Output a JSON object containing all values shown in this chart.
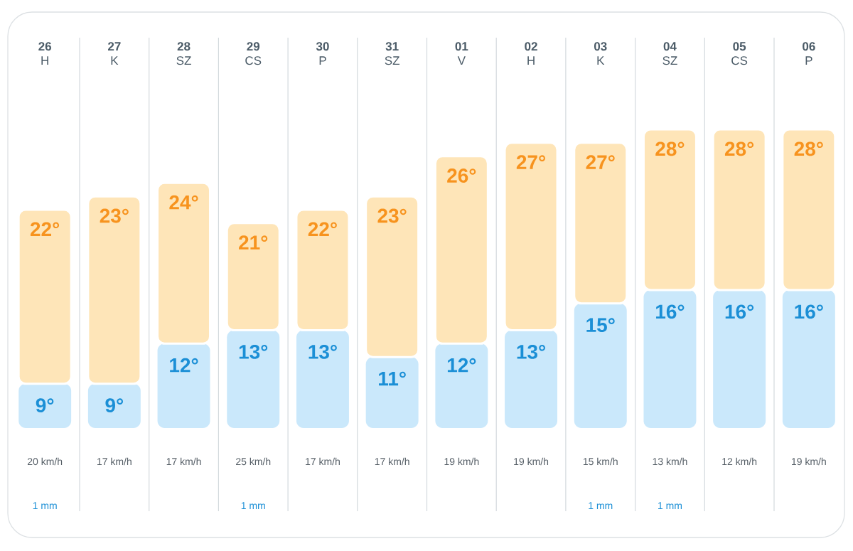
{
  "chart_data": [
    {
      "type": "bar",
      "categories": [
        "**26** H",
        "**27** K",
        "**28** SZ",
        "**29** CS",
        "**30** P",
        "**31** SZ",
        "**01** V",
        "**02** H",
        "**03** K",
        "**04** SZ",
        "**05** CS",
        "**06** P"
      ],
      "stacked": true,
      "series": [
        {
          "color": "#cae8fb",
          "values": [
            9,
            9,
            12,
            13,
            13,
            11,
            12,
            13,
            15,
            16,
            16,
            16
          ],
          "value_labels": [
            "9°",
            "9°",
            "12°",
            "13°",
            "13°",
            "11°",
            "12°",
            "13°",
            "15°",
            "16°",
            "16°",
            "16°"
          ]
        },
        {
          "color": "#fee5b8",
          "values": [
            13,
            14,
            12,
            8,
            9,
            12,
            14,
            14,
            12,
            12,
            12,
            12
          ]
        }
      ],
      "totals": [
        "22°",
        "23°",
        "24°",
        "21°",
        "22°",
        "23°",
        "26°",
        "27°",
        "27°",
        "28°",
        "28°",
        "28°"
      ],
      "ylim": [
        5.7,
        28
      ],
      "tick_labels": "x",
      "grid": "x"
    },
    {
      "type": "other",
      "categories": [
        "20 km/h",
        "17 km/h",
        "17 km/h",
        "25 km/h",
        "17 km/h",
        "17 km/h",
        "19 km/h",
        "19 km/h",
        "15 km/h",
        "13 km/h",
        "12 km/h",
        "19 km/h"
      ]
    },
    {
      "type": "other",
      "categories": [
        "1 mm",
        null,
        null,
        "1 mm",
        null,
        null,
        null,
        null,
        "1 mm",
        "1 mm",
        null,
        null
      ]
    }
  ]
}
